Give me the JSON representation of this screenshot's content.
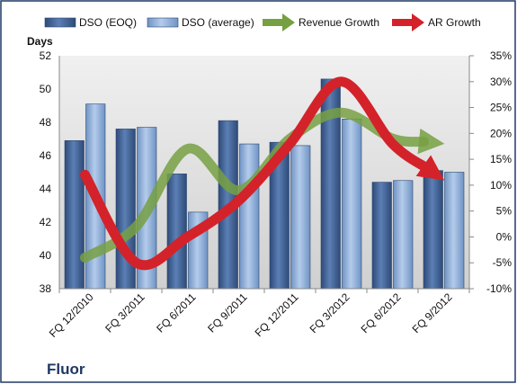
{
  "colors": {
    "dso_eoq": "#4a6a9c",
    "dso_average": "#86a9d6",
    "revenue_growth": "#77a043",
    "ar_growth": "#d4222a",
    "plot_background": "#e4e4e4",
    "border": "#1f3864"
  },
  "chart_data": {
    "type": "bar",
    "company": "Fluor",
    "ylabel": "Days",
    "categories": [
      "FQ 12/2010",
      "FQ 3/2011",
      "FQ 6/2011",
      "FQ 9/2011",
      "FQ 12/2011",
      "FQ 3/2012",
      "FQ 6/2012",
      "FQ 9/2012"
    ],
    "ylim": [
      38,
      52
    ],
    "y_ticks": [
      "38",
      "40",
      "42",
      "44",
      "46",
      "48",
      "50",
      "52"
    ],
    "y2lim": [
      -10,
      35
    ],
    "y2_ticks": [
      "-10%",
      "-5%",
      "0%",
      "5%",
      "10%",
      "15%",
      "20%",
      "25%",
      "30%",
      "35%"
    ],
    "legend_position": "top",
    "grid": false,
    "series": [
      {
        "name": "DSO (EOQ)",
        "type": "bar",
        "axis": "left",
        "values": [
          46.9,
          47.6,
          44.9,
          48.1,
          46.8,
          50.6,
          44.4,
          45.1
        ]
      },
      {
        "name": "DSO (average)",
        "type": "bar",
        "axis": "left",
        "values": [
          49.1,
          47.7,
          42.6,
          46.7,
          46.6,
          48.2,
          44.5,
          45.0
        ]
      },
      {
        "name": "Revenue Growth",
        "type": "line",
        "axis": "right",
        "values": [
          -4,
          2,
          17,
          9,
          19,
          24,
          19,
          18
        ]
      },
      {
        "name": "AR Growth",
        "type": "line",
        "axis": "right",
        "values": [
          12,
          -5,
          0,
          7,
          18,
          30,
          18,
          11
        ]
      }
    ]
  }
}
